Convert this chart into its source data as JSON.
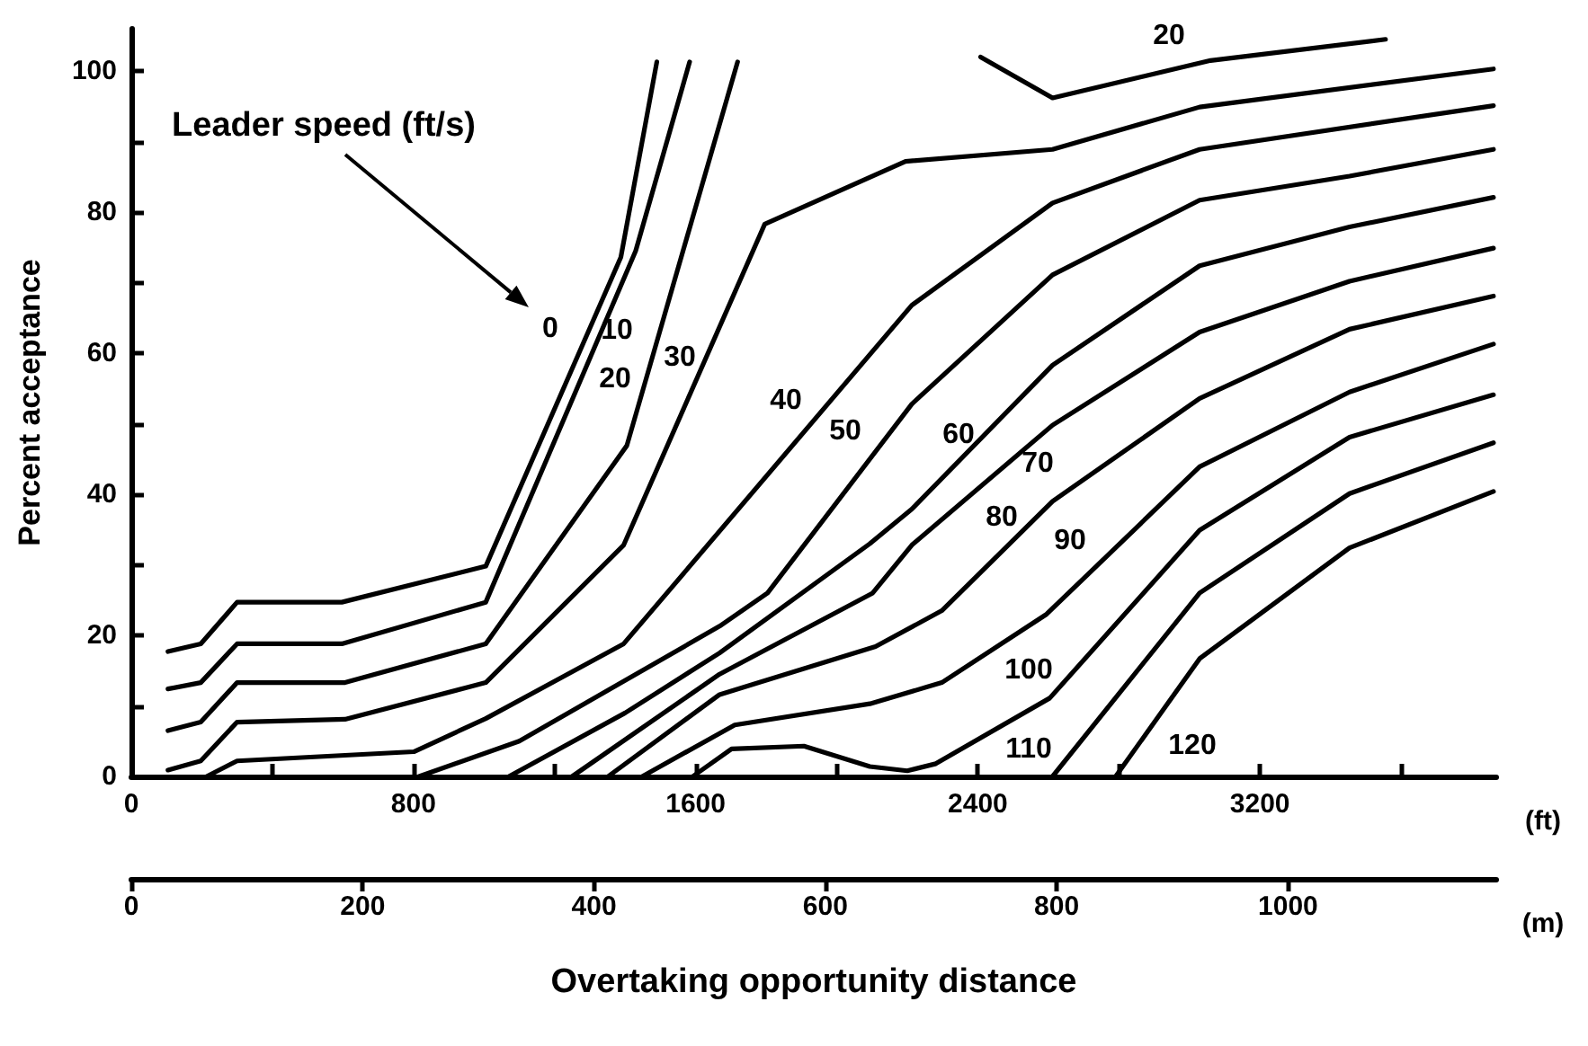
{
  "chart_data": {
    "type": "line",
    "xlabel": "Overtaking opportunity distance",
    "ylabel": "Percent acceptance",
    "xlim": [
      0,
      3870
    ],
    "xticks": [
      0,
      {
        "value": 400,
        "label": null
      },
      800,
      {
        "value": 1200,
        "label": null
      },
      1600,
      {
        "value": 2000,
        "label": null
      },
      2400,
      {
        "value": 2800,
        "label": null
      },
      3200,
      {
        "value": 3600,
        "label": null
      }
    ],
    "x2lim": [
      0,
      1180
    ],
    "x2ticks": [
      0,
      200,
      400,
      600,
      800,
      1000
    ],
    "ylim": [
      0,
      106
    ],
    "yticks": [
      0,
      {
        "value": 10,
        "label": null
      },
      20,
      {
        "value": 30,
        "label": null
      },
      40,
      {
        "value": 50,
        "label": null
      },
      60,
      {
        "value": 70,
        "label": null
      },
      80,
      {
        "value": 90,
        "label": null
      },
      100
    ],
    "grid": false,
    "marker": "none",
    "line_style": "solid",
    "series": [
      {
        "name": "0",
        "color": "#000000",
        "x": [
          104,
          197,
          300,
          597,
          1005,
          1388,
          1490
        ],
        "values": [
          17.7,
          18.8,
          24.7,
          24.7,
          29.8,
          73.6,
          101.3
        ]
      },
      {
        "name": "10",
        "color": "#000000",
        "x": [
          104,
          197,
          300,
          597,
          1005,
          1430,
          1583
        ],
        "values": [
          12.4,
          13.3,
          18.8,
          18.8,
          24.7,
          74.5,
          101.3
        ]
      },
      {
        "name": "20",
        "color": "#000000",
        "x": [
          104,
          197,
          300,
          606,
          1005,
          1405,
          1719
        ],
        "values": [
          6.5,
          7.7,
          13.3,
          13.3,
          18.8,
          46.9,
          101.3
        ]
      },
      {
        "name": "30",
        "color": "#000000",
        "x": [
          104,
          197,
          300,
          606,
          1005,
          1396,
          1796,
          2195,
          2612,
          3029,
          3862
        ],
        "values": [
          0.9,
          2.2,
          7.7,
          8.1,
          13.3,
          32.8,
          78.3,
          87.2,
          88.9,
          94.9,
          100.3
        ]
      },
      {
        "name": "40",
        "color": "#000000",
        "x": [
          214,
          300,
          801,
          1005,
          1396,
          2213,
          2612,
          3029,
          3862
        ],
        "values": [
          0,
          2.2,
          3.5,
          8.2,
          18.8,
          66.8,
          81.3,
          88.9,
          95.1
        ]
      },
      {
        "name": "50",
        "color": "#000000",
        "x": [
          816,
          1100,
          1668,
          1804,
          2213,
          2612,
          3029,
          3454,
          3862
        ],
        "values": [
          0,
          5,
          21.3,
          26.0,
          52.8,
          71.1,
          81.7,
          85.1,
          88.9
        ]
      },
      {
        "name": "60",
        "color": "#000000",
        "x": [
          1071,
          1400,
          1668,
          2094,
          2213,
          2612,
          3029,
          3454,
          3862
        ],
        "values": [
          0,
          9,
          17.5,
          33,
          37.9,
          58.3,
          72.4,
          77.9,
          82.1
        ]
      },
      {
        "name": "70",
        "color": "#000000",
        "x": [
          1250,
          1668,
          2102,
          2213,
          2612,
          3029,
          3454,
          3862
        ],
        "values": [
          0,
          14.5,
          26.0,
          32.8,
          49.8,
          63.0,
          70.2,
          74.9
        ]
      },
      {
        "name": "80",
        "color": "#000000",
        "x": [
          1352,
          1668,
          2110,
          2298,
          2612,
          3029,
          3454,
          3862
        ],
        "values": [
          0,
          11.6,
          18.4,
          23.5,
          39.0,
          53.6,
          63.4,
          68.1
        ]
      },
      {
        "name": "90",
        "color": "#000000",
        "x": [
          1449,
          1711,
          2094,
          2298,
          2595,
          3029,
          3454,
          3862
        ],
        "values": [
          0,
          7.3,
          10.3,
          13.3,
          23.0,
          43.9,
          54.5,
          61.3
        ]
      },
      {
        "name": "100",
        "color": "#000000",
        "x": [
          1592,
          1702,
          1907,
          2094,
          2200,
          2281,
          2604,
          3029,
          3454,
          3862
        ],
        "values": [
          0,
          3.9,
          4.3,
          1.4,
          0.8,
          1.8,
          11.1,
          34.9,
          48.1,
          54.1
        ]
      },
      {
        "name": "110",
        "color": "#000000",
        "x": [
          2612,
          3029,
          3454,
          3862
        ],
        "values": [
          0,
          26.0,
          40.1,
          47.3
        ]
      },
      {
        "name": "120",
        "color": "#000000",
        "x": [
          2791,
          3029,
          3454,
          3862
        ],
        "values": [
          0,
          16.7,
          32.4,
          40.4
        ]
      },
      {
        "name": "20",
        "color": "#000000",
        "x": [
          2408,
          2612,
          3060,
          3556
        ],
        "values": [
          102,
          96.2,
          101.5,
          104.5
        ]
      }
    ],
    "annotations": [
      "Leader speed (ft/s)",
      "(ft)",
      "(m)"
    ]
  }
}
